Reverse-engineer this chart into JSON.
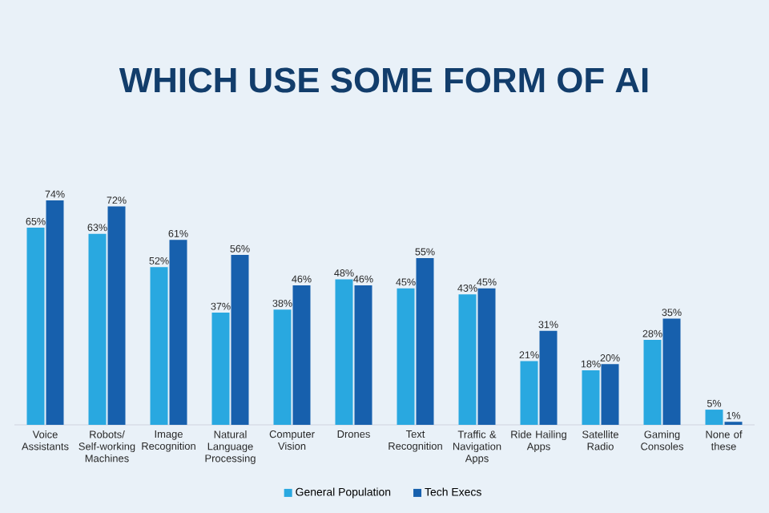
{
  "chart_data": {
    "type": "bar",
    "title": "WHICH USE SOME FORM OF AI",
    "categories": [
      "Voice Assistants",
      "Robots/ Self-working Machines",
      "Image Recognition",
      "Natural Language Processing",
      "Computer Vision",
      "Drones",
      "Text Recognition",
      "Traffic & Navigation Apps",
      "Ride Hailing Apps",
      "Satellite Radio",
      "Gaming Consoles",
      "None of these"
    ],
    "series": [
      {
        "name": "General Population",
        "color": "#29a8e0",
        "values": [
          65,
          63,
          52,
          37,
          38,
          48,
          45,
          43,
          21,
          18,
          28,
          5
        ],
        "value_labels": [
          "65%",
          "63%",
          "52%",
          "37%",
          "38%",
          "48%",
          "45%",
          "43%",
          "21%",
          "18%",
          "28%",
          "5%"
        ]
      },
      {
        "name": "Tech Execs",
        "color": "#1760ad",
        "values": [
          74,
          72,
          61,
          56,
          46,
          46,
          55,
          45,
          31,
          20,
          35,
          1
        ],
        "value_labels": [
          "74%",
          "72%",
          "61%",
          "56%",
          "46%",
          "46%",
          "55%",
          "45%",
          "31%",
          "20%",
          "35%",
          "1%"
        ]
      }
    ],
    "legend": "bottom",
    "tick_labels": "x"
  }
}
